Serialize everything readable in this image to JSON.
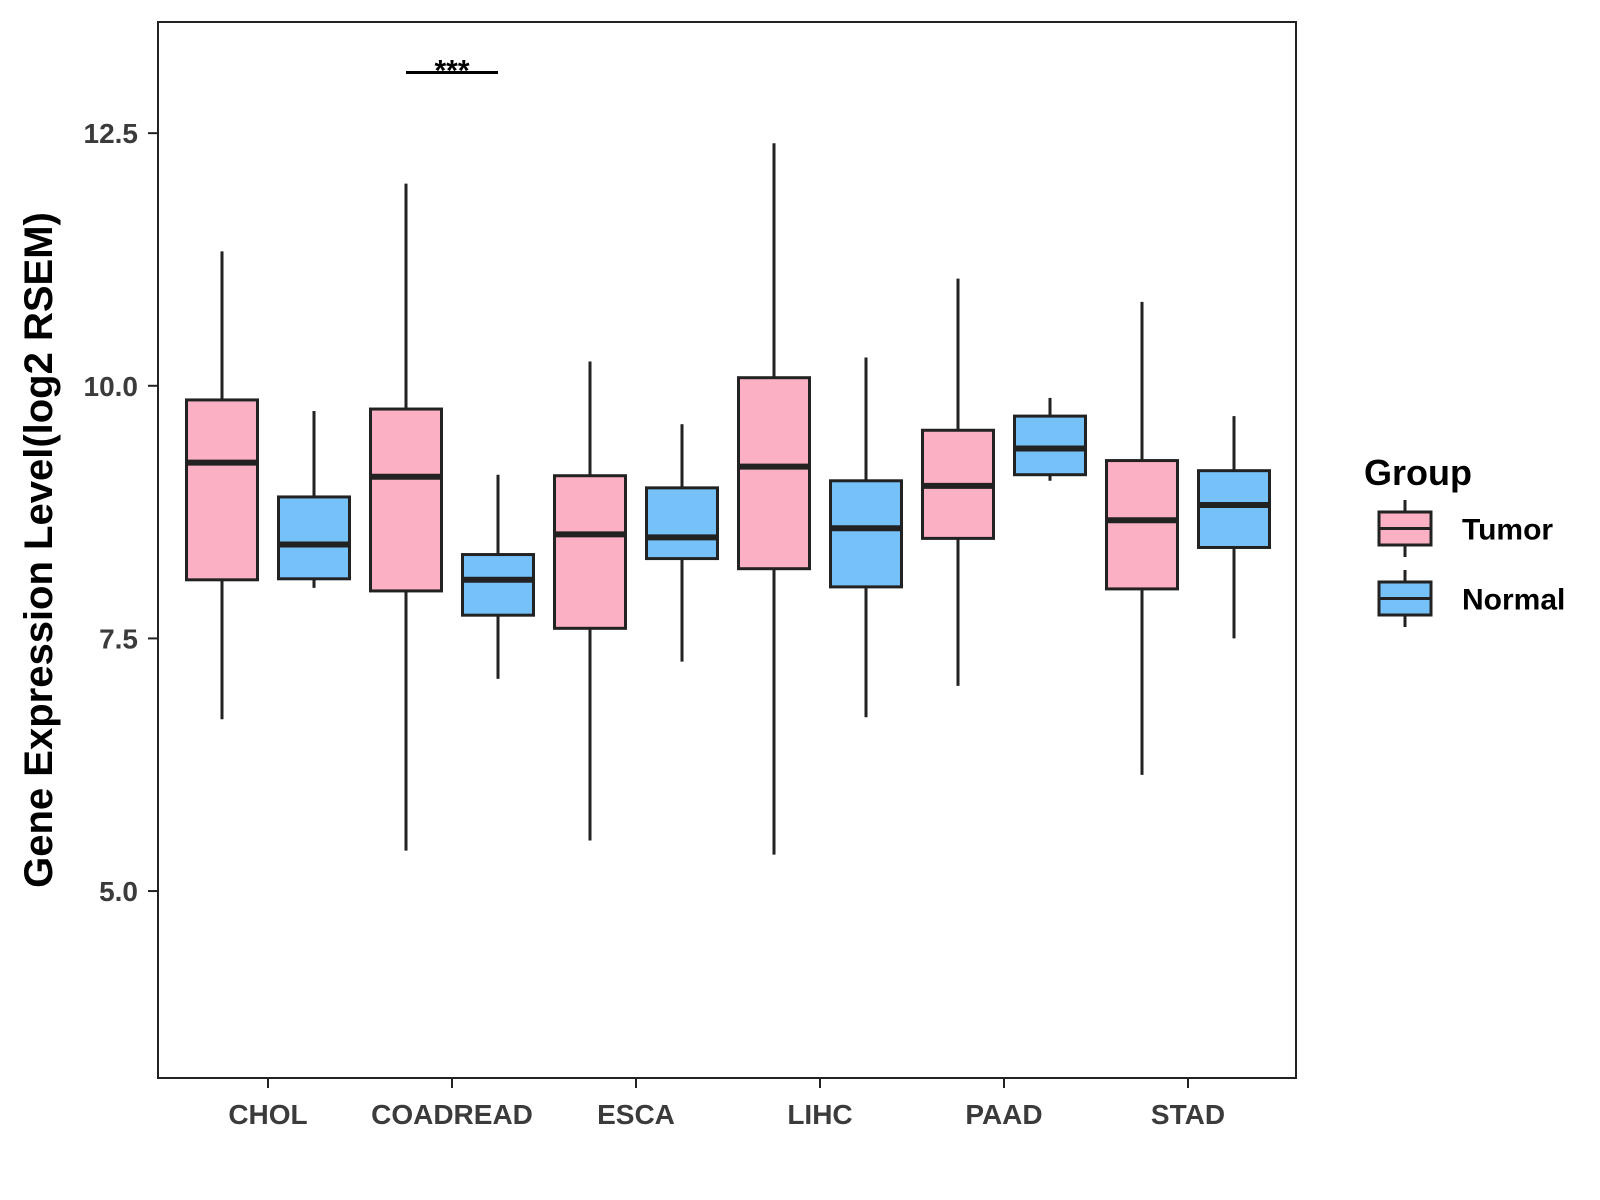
{
  "chart_data": {
    "type": "boxplot",
    "title": "",
    "xlabel": "",
    "ylabel": "Gene Expression Level(log2 RSEM)",
    "ylim": [
      3.15,
      13.6
    ],
    "yticks": [
      5.0,
      7.5,
      10.0,
      12.5
    ],
    "ytick_labels": [
      "5.0",
      "7.5",
      "10.0",
      "12.5"
    ],
    "categories": [
      "CHOL",
      "COADREAD",
      "ESCA",
      "LIHC",
      "PAAD",
      "STAD"
    ],
    "legend": {
      "title": "Group",
      "position": "right",
      "entries": [
        "Tumor",
        "Normal"
      ]
    },
    "series": [
      {
        "name": "Tumor",
        "color": "#fbb1c3",
        "boxes": [
          {
            "category": "CHOL",
            "min": 6.7,
            "q1": 8.08,
            "median": 9.24,
            "q3": 9.86,
            "max": 11.33
          },
          {
            "category": "COADREAD",
            "min": 5.4,
            "q1": 7.97,
            "median": 9.1,
            "q3": 9.77,
            "max": 12.0
          },
          {
            "category": "ESCA",
            "min": 5.5,
            "q1": 7.6,
            "median": 8.53,
            "q3": 9.11,
            "max": 10.24
          },
          {
            "category": "LIHC",
            "min": 5.36,
            "q1": 8.19,
            "median": 9.2,
            "q3": 10.08,
            "max": 12.4
          },
          {
            "category": "PAAD",
            "min": 7.03,
            "q1": 8.49,
            "median": 9.01,
            "q3": 9.56,
            "max": 11.06
          },
          {
            "category": "STAD",
            "min": 6.15,
            "q1": 7.99,
            "median": 8.67,
            "q3": 9.26,
            "max": 10.83
          }
        ]
      },
      {
        "name": "Normal",
        "color": "#76c2f8",
        "boxes": [
          {
            "category": "CHOL",
            "min": 8.0,
            "q1": 8.09,
            "median": 8.43,
            "q3": 8.9,
            "max": 9.75
          },
          {
            "category": "COADREAD",
            "min": 7.1,
            "q1": 7.73,
            "median": 8.08,
            "q3": 8.33,
            "max": 9.12
          },
          {
            "category": "ESCA",
            "min": 7.27,
            "q1": 8.29,
            "median": 8.5,
            "q3": 8.99,
            "max": 9.62
          },
          {
            "category": "LIHC",
            "min": 6.72,
            "q1": 8.01,
            "median": 8.59,
            "q3": 9.06,
            "max": 10.28
          },
          {
            "category": "PAAD",
            "min": 9.06,
            "q1": 9.12,
            "median": 9.38,
            "q3": 9.7,
            "max": 9.88
          },
          {
            "category": "STAD",
            "min": 7.5,
            "q1": 8.4,
            "median": 8.82,
            "q3": 9.16,
            "max": 9.7
          }
        ]
      }
    ],
    "annotations": [
      {
        "category": "COADREAD",
        "text": "***",
        "y": 13.1
      }
    ],
    "grid": false
  }
}
